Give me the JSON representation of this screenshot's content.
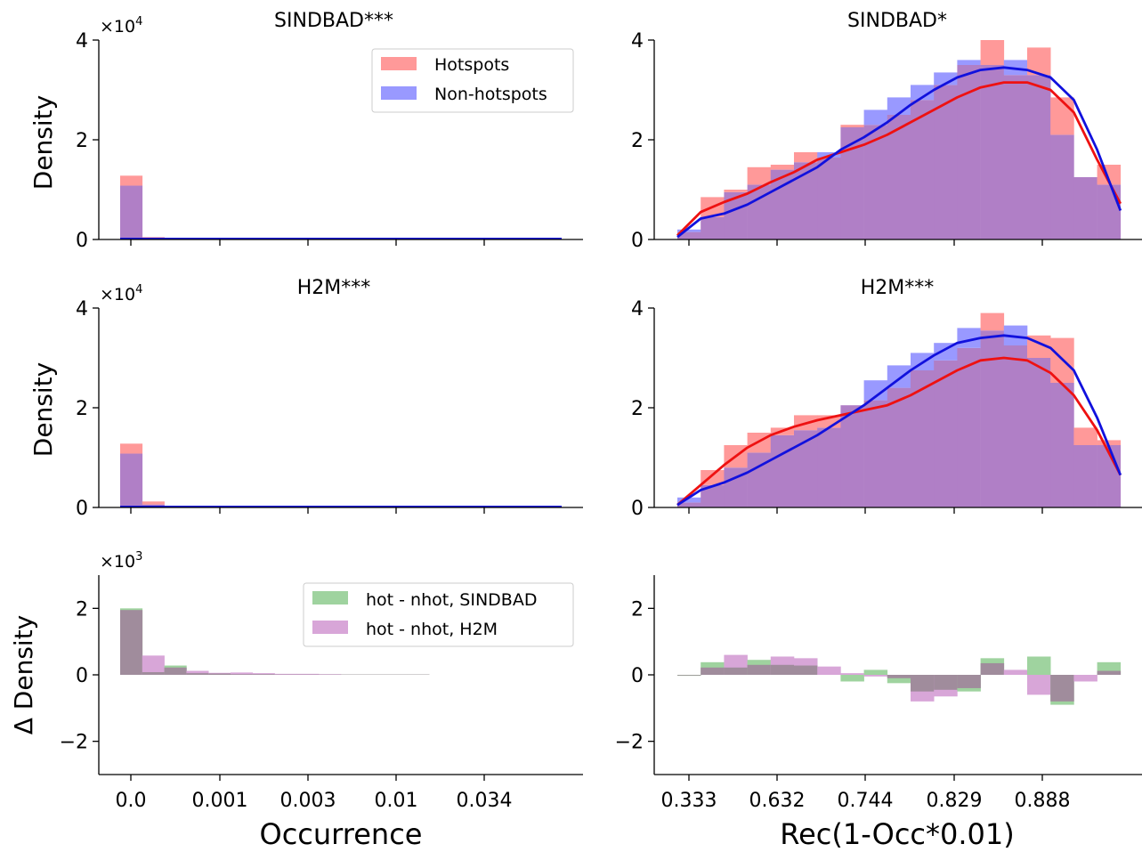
{
  "figure": {
    "xlabel_left": "Occurrence",
    "xlabel_right": "Rec(1-Occ*0.01)"
  },
  "colors": {
    "hotspots": "#ff9999",
    "nonhotspots": "#9999ff",
    "overlap": "#b07fc6",
    "red_line": "#ee1111",
    "blue_line": "#1111dd",
    "diff_sindbad": "#9fd39f",
    "diff_h2m": "#d8a6d8",
    "diff_overlap": "#a08c9c"
  },
  "chart_data": [
    {
      "id": "p1",
      "type": "bar",
      "title": "SINDBAD***",
      "ylabel": "Density",
      "scale_label": "×10^4",
      "ylim": [
        0,
        4
      ],
      "yticks": [
        "0",
        "2",
        "4"
      ],
      "xticks": [
        "0.0",
        "0.001",
        "0.003",
        "0.01",
        "0.034"
      ],
      "legend": [
        "Hotspots",
        "Non-hotspots"
      ],
      "series": [
        {
          "name": "Hotspots",
          "values": [
            1.28,
            0.05,
            0.015,
            0.012,
            0.01,
            0.01,
            0.01,
            0.01,
            0.01,
            0.01,
            0.01,
            0.01,
            0.01,
            0.01,
            0.01,
            0.01,
            0.01,
            0.01,
            0.01,
            0.01
          ]
        },
        {
          "name": "Non-hotspots",
          "values": [
            1.08,
            0.04,
            0.015,
            0.012,
            0.01,
            0.01,
            0.01,
            0.01,
            0.01,
            0.01,
            0.01,
            0.01,
            0.01,
            0.01,
            0.01,
            0.01,
            0.01,
            0.01,
            0.01,
            0.01
          ]
        }
      ]
    },
    {
      "id": "p2",
      "type": "bar",
      "title": "SINDBAD*",
      "ylim": [
        0,
        4
      ],
      "yticks": [
        "0",
        "2",
        "4"
      ],
      "series": [
        {
          "name": "Hotspots",
          "values": [
            0.15,
            0.85,
            1.0,
            1.45,
            1.5,
            1.75,
            1.65,
            2.3,
            2.3,
            2.5,
            2.8,
            3.1,
            3.5,
            4.0,
            3.3,
            3.85,
            2.85,
            1.25,
            1.5
          ]
        },
        {
          "name": "Non-hotspots",
          "values": [
            0.2,
            0.45,
            0.95,
            1.1,
            1.4,
            1.55,
            1.75,
            2.25,
            2.6,
            2.85,
            3.1,
            3.35,
            3.6,
            3.5,
            3.6,
            3.3,
            2.1,
            1.25,
            1.1
          ]
        },
        {
          "name": "Hotspots line",
          "values": [
            0.08,
            0.55,
            0.75,
            0.92,
            1.15,
            1.35,
            1.6,
            1.75,
            1.9,
            2.1,
            2.35,
            2.6,
            2.85,
            3.05,
            3.15,
            3.15,
            3.0,
            2.55,
            1.6,
            0.72
          ]
        },
        {
          "name": "Non-hotspots line",
          "values": [
            0.05,
            0.42,
            0.52,
            0.7,
            0.95,
            1.2,
            1.45,
            1.8,
            2.05,
            2.35,
            2.7,
            3.0,
            3.25,
            3.4,
            3.45,
            3.4,
            3.25,
            2.8,
            1.8,
            0.58
          ]
        }
      ]
    },
    {
      "id": "p3",
      "type": "bar",
      "title": "H2M***",
      "ylabel": "Density",
      "scale_label": "×10^4",
      "ylim": [
        0,
        4
      ],
      "yticks": [
        "0",
        "2",
        "4"
      ],
      "xticks": [
        "0.0",
        "0.001",
        "0.003",
        "0.01",
        "0.034"
      ],
      "series": [
        {
          "name": "Hotspots",
          "values": [
            1.28,
            0.12,
            0.03,
            0.012,
            0.01,
            0.01,
            0.01,
            0.01,
            0.01,
            0.01,
            0.01,
            0.01,
            0.01,
            0.01,
            0.01,
            0.01,
            0.01,
            0.01,
            0.01,
            0.01
          ]
        },
        {
          "name": "Non-hotspots",
          "values": [
            1.08,
            0.06,
            0.02,
            0.012,
            0.01,
            0.01,
            0.01,
            0.01,
            0.01,
            0.01,
            0.01,
            0.01,
            0.01,
            0.01,
            0.01,
            0.01,
            0.01,
            0.01,
            0.01,
            0.01
          ]
        }
      ]
    },
    {
      "id": "p4",
      "type": "bar",
      "title": "H2M***",
      "ylim": [
        0,
        4
      ],
      "yticks": [
        "0",
        "2",
        "4"
      ],
      "series": [
        {
          "name": "Hotspots",
          "values": [
            0.1,
            0.75,
            1.25,
            1.5,
            1.6,
            1.85,
            1.85,
            2.05,
            2.15,
            2.4,
            2.75,
            2.95,
            3.2,
            3.9,
            3.25,
            3.45,
            3.4,
            1.6,
            1.35
          ]
        },
        {
          "name": "Non-hotspots",
          "values": [
            0.2,
            0.45,
            0.8,
            1.1,
            1.45,
            1.55,
            1.6,
            2.05,
            2.55,
            2.85,
            3.1,
            3.3,
            3.6,
            3.55,
            3.65,
            3.0,
            2.5,
            1.25,
            1.25
          ]
        },
        {
          "name": "Hotspots line",
          "values": [
            0.05,
            0.45,
            0.85,
            1.2,
            1.45,
            1.62,
            1.75,
            1.85,
            1.95,
            2.05,
            2.25,
            2.5,
            2.75,
            2.95,
            3.0,
            2.95,
            2.7,
            2.25,
            1.55,
            0.65
          ]
        },
        {
          "name": "Non-hotspots line",
          "values": [
            0.05,
            0.35,
            0.5,
            0.7,
            0.95,
            1.2,
            1.45,
            1.75,
            2.05,
            2.4,
            2.75,
            3.05,
            3.3,
            3.4,
            3.45,
            3.4,
            3.2,
            2.75,
            1.8,
            0.65
          ]
        }
      ]
    },
    {
      "id": "p5",
      "type": "bar",
      "ylabel": "Δ Density",
      "scale_label": "×10^3",
      "ylim": [
        -3,
        3
      ],
      "yticks": [
        "−2",
        "0",
        "2"
      ],
      "xticks": [
        "0.0",
        "0.001",
        "0.003",
        "0.01",
        "0.034"
      ],
      "legend": [
        "hot - nhot, SINDBAD",
        "hot - nhot, H2M"
      ],
      "series": [
        {
          "name": "hot - nhot, SINDBAD",
          "values": [
            2.0,
            0.08,
            0.28,
            0.05,
            0.04,
            0.02,
            0.02,
            0.01,
            0.01,
            0.01,
            0.01,
            0.01,
            0.01,
            0.01,
            0.0,
            0.0,
            0.0,
            0.0,
            0.0,
            0.0
          ]
        },
        {
          "name": "hot - nhot, H2M",
          "values": [
            1.95,
            0.58,
            0.22,
            0.12,
            0.06,
            0.07,
            0.05,
            0.03,
            0.03,
            0.02,
            0.01,
            0.01,
            0.01,
            0.01,
            0.0,
            0.0,
            0.0,
            0.0,
            0.0,
            0.0
          ]
        }
      ]
    },
    {
      "id": "p6",
      "type": "bar",
      "ylim": [
        -3,
        3
      ],
      "yticks": [
        "−2",
        "0",
        "2"
      ],
      "xticks": [
        "0.333",
        "0.632",
        "0.744",
        "0.829",
        "0.888"
      ],
      "series": [
        {
          "name": "hot - nhot, SINDBAD",
          "values": [
            -0.03,
            0.38,
            0.22,
            0.45,
            0.3,
            0.28,
            0.0,
            -0.2,
            0.15,
            -0.25,
            -0.5,
            -0.45,
            -0.5,
            0.5,
            0.0,
            0.55,
            -0.9,
            0.0,
            0.38
          ]
        },
        {
          "name": "hot - nhot, H2M",
          "values": [
            -0.02,
            0.22,
            0.6,
            0.3,
            0.55,
            0.5,
            0.25,
            0.05,
            -0.05,
            -0.1,
            -0.8,
            -0.65,
            -0.4,
            0.35,
            0.15,
            -0.6,
            -0.8,
            -0.2,
            0.12
          ]
        }
      ]
    }
  ]
}
